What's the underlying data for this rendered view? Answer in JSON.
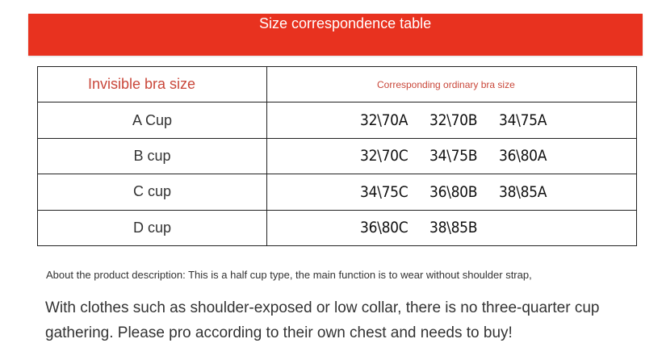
{
  "banner": {
    "title": "Size correspondence table",
    "color": "#e8321f"
  },
  "table": {
    "headers": {
      "left": "Invisible bra size",
      "right": "Corresponding ordinary bra size"
    },
    "rows": [
      {
        "cup": "A Cup",
        "sizes": [
          "32\\70A",
          "32\\70B",
          "34\\75A"
        ]
      },
      {
        "cup": "B cup",
        "sizes": [
          "32\\70C",
          "34\\75B",
          "36\\80A"
        ]
      },
      {
        "cup": "C cup",
        "sizes": [
          "34\\75C",
          "36\\80B",
          "38\\85A"
        ]
      },
      {
        "cup": "D cup",
        "sizes": [
          "36\\80C",
          "38\\85B"
        ]
      }
    ]
  },
  "description": {
    "line1": "About the product description: This is a half cup type, the main function is to wear without shoulder strap,",
    "line2": "With clothes such as shoulder-exposed or low collar, there is no three-quarter cup gathering. Please pro according to their own chest and needs to buy!"
  }
}
